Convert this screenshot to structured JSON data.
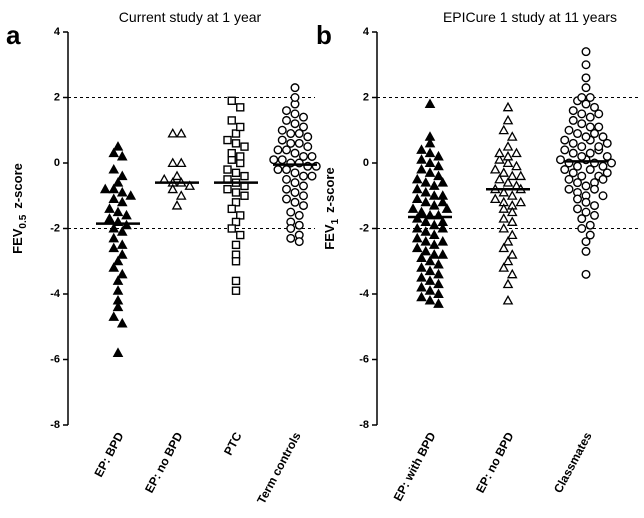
{
  "chart_data": [
    {
      "type": "strip",
      "panel": "a",
      "title": "Current study at 1 year",
      "ylabel": [
        "FEV",
        "0.5",
        "z-score"
      ],
      "ylim": [
        -8,
        4
      ],
      "yticks": [
        -8,
        -6,
        -4,
        -2,
        0,
        2,
        4
      ],
      "ref_lines": [
        -2,
        2
      ],
      "series": [
        {
          "name": "EP: BPD",
          "marker": "triangle-filled",
          "color": "#000000",
          "median": -1.85,
          "values": [
            0.5,
            0.3,
            0.2,
            -0.2,
            -0.4,
            -0.6,
            -0.8,
            -0.8,
            -0.9,
            -1.0,
            -1.1,
            -1.2,
            -1.4,
            -1.5,
            -1.6,
            -1.7,
            -1.8,
            -1.9,
            -2.0,
            -2.1,
            -2.3,
            -2.5,
            -2.6,
            -2.8,
            -3.0,
            -3.2,
            -3.4,
            -3.6,
            -3.9,
            -4.2,
            -4.4,
            -4.7,
            -4.9,
            -5.8
          ]
        },
        {
          "name": "EP: no BPD",
          "marker": "triangle-open",
          "color": "#000000",
          "median": -0.6,
          "values": [
            0.9,
            0.9,
            0.0,
            0.0,
            -0.4,
            -0.5,
            -0.6,
            -0.6,
            -0.7,
            -0.8,
            -1.0,
            -1.3
          ]
        },
        {
          "name": "PTC",
          "marker": "square-open",
          "color": "#000000",
          "median": -0.6,
          "values": [
            1.9,
            1.7,
            1.3,
            1.1,
            0.9,
            0.7,
            0.6,
            0.5,
            0.3,
            0.2,
            0.1,
            0.0,
            -0.2,
            -0.3,
            -0.4,
            -0.5,
            -0.6,
            -0.7,
            -0.8,
            -0.9,
            -1.0,
            -1.2,
            -1.4,
            -1.6,
            -1.8,
            -2.0,
            -2.2,
            -2.5,
            -2.8,
            -3.0,
            -3.6,
            -3.9
          ]
        },
        {
          "name": "Term controls",
          "marker": "circle-open",
          "color": "#000000",
          "median": -0.05,
          "values": [
            2.3,
            2.0,
            1.8,
            1.6,
            1.5,
            1.4,
            1.3,
            1.2,
            1.1,
            1.0,
            0.9,
            0.9,
            0.8,
            0.7,
            0.6,
            0.6,
            0.5,
            0.4,
            0.4,
            0.3,
            0.2,
            0.2,
            0.1,
            0.1,
            0.0,
            0.0,
            -0.1,
            -0.1,
            -0.2,
            -0.2,
            -0.3,
            -0.4,
            -0.4,
            -0.5,
            -0.6,
            -0.7,
            -0.8,
            -0.9,
            -1.0,
            -1.1,
            -1.2,
            -1.3,
            -1.5,
            -1.6,
            -1.8,
            -1.9,
            -2.0,
            -2.2,
            -2.3,
            -2.4
          ]
        }
      ]
    },
    {
      "type": "strip",
      "panel": "b",
      "title": "EPICure 1 study at 11 years",
      "ylabel": [
        "FEV",
        "1",
        "z-score"
      ],
      "ylim": [
        -8,
        4
      ],
      "yticks": [
        -8,
        -6,
        -4,
        -2,
        0,
        2,
        4
      ],
      "ref_lines": [
        -2,
        2
      ],
      "series": [
        {
          "name": "EP: with BPD",
          "marker": "triangle-filled",
          "color": "#000000",
          "median": -1.65,
          "values": [
            1.8,
            0.8,
            0.6,
            0.4,
            0.3,
            0.2,
            0.1,
            0.0,
            -0.1,
            -0.2,
            -0.3,
            -0.4,
            -0.5,
            -0.6,
            -0.7,
            -0.8,
            -0.9,
            -1.0,
            -1.1,
            -1.2,
            -1.3,
            -1.4,
            -1.5,
            -1.6,
            -1.6,
            -1.7,
            -1.8,
            -1.9,
            -2.0,
            -2.1,
            -2.2,
            -2.3,
            -2.4,
            -2.5,
            -2.6,
            -2.7,
            -2.8,
            -2.9,
            -3.0,
            -3.1,
            -3.2,
            -3.3,
            -3.4,
            -3.5,
            -3.6,
            -3.7,
            -3.8,
            -3.9,
            -4.0,
            -4.1,
            -4.2,
            -4.3,
            -1.2,
            -1.4,
            -1.8,
            -2.0,
            -0.6,
            -1.0,
            -2.4,
            -2.8
          ]
        },
        {
          "name": "EP: no BPD",
          "marker": "triangle-open",
          "color": "#000000",
          "median": -0.8,
          "values": [
            1.7,
            1.3,
            1.0,
            0.8,
            0.5,
            0.3,
            0.2,
            0.1,
            0.0,
            -0.1,
            -0.2,
            -0.3,
            -0.4,
            -0.5,
            -0.6,
            -0.7,
            -0.8,
            -0.9,
            -1.0,
            -1.1,
            -1.2,
            -1.3,
            -1.4,
            -1.5,
            -1.7,
            -1.8,
            -2.0,
            -2.2,
            -2.4,
            -2.6,
            -2.8,
            -3.0,
            -3.2,
            -3.4,
            -3.7,
            -4.2,
            0.3,
            -0.4,
            -0.8,
            -1.2
          ]
        },
        {
          "name": "Classmates",
          "marker": "circle-open",
          "color": "#000000",
          "median": 0.05,
          "values": [
            3.4,
            3.0,
            2.6,
            2.3,
            2.0,
            1.9,
            1.8,
            1.6,
            1.5,
            1.4,
            1.3,
            1.2,
            1.1,
            1.0,
            0.9,
            0.8,
            0.7,
            0.6,
            0.5,
            0.4,
            0.3,
            0.2,
            0.1,
            0.0,
            -0.1,
            -0.2,
            -0.3,
            -0.4,
            -0.5,
            -0.6,
            -0.7,
            -0.8,
            -0.9,
            -1.0,
            -1.1,
            -1.2,
            -1.4,
            -1.5,
            -1.7,
            -1.9,
            -2.0,
            -2.2,
            -2.4,
            -2.7,
            -3.4,
            0.9,
            0.7,
            0.5,
            0.3,
            0.1,
            0.0,
            -0.2,
            -0.4,
            -0.6,
            1.1,
            0.4,
            0.2,
            -0.1,
            -0.3,
            -0.8,
            1.5,
            0.6,
            0.0,
            -0.5,
            -1.3,
            2.0,
            1.7,
            -1.0,
            -1.6,
            0.8
          ]
        }
      ]
    }
  ]
}
